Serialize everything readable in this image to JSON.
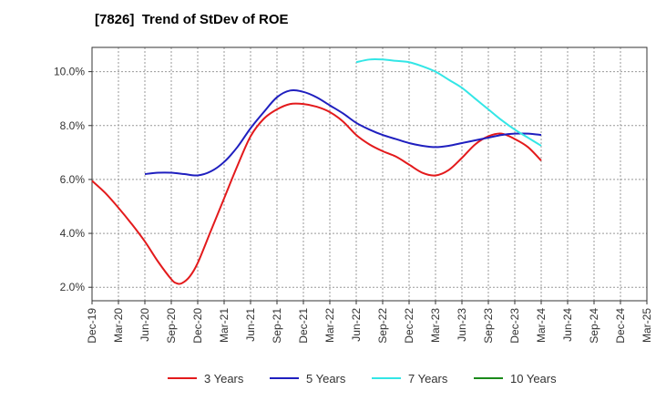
{
  "chart_data": {
    "type": "line",
    "title": "[7826]  Trend of StDev of ROE",
    "x_categories": [
      "Dec-19",
      "Mar-20",
      "Jun-20",
      "Sep-20",
      "Dec-20",
      "Mar-21",
      "Jun-21",
      "Sep-21",
      "Dec-21",
      "Mar-22",
      "Jun-22",
      "Sep-22",
      "Dec-22",
      "Mar-23",
      "Jun-23",
      "Sep-23",
      "Dec-23",
      "Mar-24",
      "Jun-24",
      "Sep-24",
      "Dec-24",
      "Mar-25"
    ],
    "ylim": [
      1.5,
      10.9
    ],
    "y_ticks": [
      2.0,
      4.0,
      6.0,
      8.0,
      10.0
    ],
    "y_tick_labels": [
      "2.0%",
      "4.0%",
      "6.0%",
      "8.0%",
      "10.0%"
    ],
    "grid": true,
    "legend_position": "bottom",
    "series": [
      {
        "name": "3 Years",
        "color": "#e31a1c",
        "points": [
          [
            0,
            5.95
          ],
          [
            0.5,
            5.5
          ],
          [
            1,
            4.95
          ],
          [
            1.5,
            4.35
          ],
          [
            2,
            3.7
          ],
          [
            2.5,
            2.95
          ],
          [
            3,
            2.3
          ],
          [
            3.2,
            2.15
          ],
          [
            3.4,
            2.15
          ],
          [
            3.7,
            2.4
          ],
          [
            4,
            2.9
          ],
          [
            4.5,
            4.1
          ],
          [
            5,
            5.3
          ],
          [
            5.5,
            6.5
          ],
          [
            6,
            7.6
          ],
          [
            6.5,
            8.25
          ],
          [
            7,
            8.6
          ],
          [
            7.5,
            8.8
          ],
          [
            8,
            8.8
          ],
          [
            8.5,
            8.7
          ],
          [
            9,
            8.5
          ],
          [
            9.5,
            8.15
          ],
          [
            10,
            7.65
          ],
          [
            10.5,
            7.3
          ],
          [
            11,
            7.05
          ],
          [
            11.5,
            6.85
          ],
          [
            12,
            6.55
          ],
          [
            12.5,
            6.25
          ],
          [
            13,
            6.15
          ],
          [
            13.5,
            6.35
          ],
          [
            14,
            6.8
          ],
          [
            14.5,
            7.3
          ],
          [
            15,
            7.6
          ],
          [
            15.5,
            7.7
          ],
          [
            16,
            7.5
          ],
          [
            16.5,
            7.2
          ],
          [
            17,
            6.7
          ]
        ]
      },
      {
        "name": "5 Years",
        "color": "#1f1fbf",
        "points": [
          [
            2,
            6.2
          ],
          [
            2.5,
            6.25
          ],
          [
            3,
            6.25
          ],
          [
            3.5,
            6.2
          ],
          [
            4,
            6.15
          ],
          [
            4.5,
            6.3
          ],
          [
            5,
            6.65
          ],
          [
            5.5,
            7.2
          ],
          [
            6,
            7.9
          ],
          [
            6.5,
            8.5
          ],
          [
            7,
            9.05
          ],
          [
            7.5,
            9.3
          ],
          [
            8,
            9.25
          ],
          [
            8.5,
            9.05
          ],
          [
            9,
            8.75
          ],
          [
            9.5,
            8.45
          ],
          [
            10,
            8.1
          ],
          [
            10.5,
            7.85
          ],
          [
            11,
            7.65
          ],
          [
            11.5,
            7.5
          ],
          [
            12,
            7.35
          ],
          [
            12.5,
            7.25
          ],
          [
            13,
            7.2
          ],
          [
            13.5,
            7.25
          ],
          [
            14,
            7.35
          ],
          [
            14.5,
            7.45
          ],
          [
            15,
            7.55
          ],
          [
            15.5,
            7.65
          ],
          [
            16,
            7.7
          ],
          [
            16.5,
            7.7
          ],
          [
            17,
            7.65
          ]
        ]
      },
      {
        "name": "7 Years",
        "color": "#33e6e6",
        "points": [
          [
            10,
            10.35
          ],
          [
            10.5,
            10.45
          ],
          [
            11,
            10.45
          ],
          [
            11.5,
            10.4
          ],
          [
            12,
            10.35
          ],
          [
            12.5,
            10.2
          ],
          [
            13,
            10.0
          ],
          [
            13.5,
            9.7
          ],
          [
            14,
            9.4
          ],
          [
            14.5,
            9.0
          ],
          [
            15,
            8.6
          ],
          [
            15.5,
            8.2
          ],
          [
            16,
            7.85
          ],
          [
            16.5,
            7.55
          ],
          [
            17,
            7.25
          ]
        ]
      },
      {
        "name": "10 Years",
        "color": "#1a8a1a",
        "points": []
      }
    ]
  }
}
